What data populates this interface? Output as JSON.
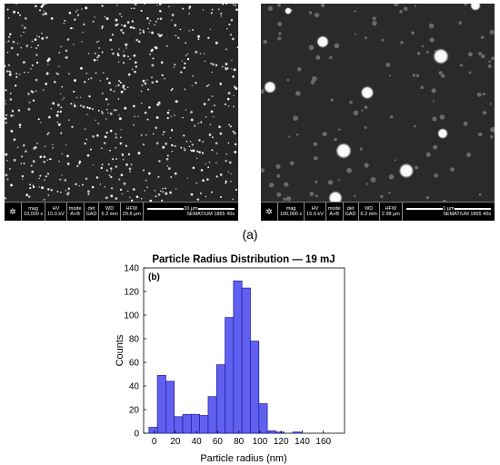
{
  "panel_a": {
    "caption": "(a)",
    "left": {
      "databar": {
        "mag_label": "mag",
        "mag_value": "10,000 x",
        "hv_label": "HV",
        "hv_value": "15.0 kV",
        "mode_label": "mode",
        "mode_value": "A+B",
        "det_label": "det",
        "det_value": "GAD",
        "wd_label": "WD",
        "wd_value": "6.3 mm",
        "hfw_label": "HFW",
        "hfw_value": "29.8 µm",
        "scale_label": "10 µm",
        "footer": "SEMAT/UM  1865 40s"
      }
    },
    "right": {
      "databar": {
        "mag_label": "mag",
        "mag_value": "100,000 x",
        "hv_label": "HV",
        "hv_value": "15.0 kV",
        "mode_label": "mode",
        "mode_value": "A+B",
        "det_label": "det",
        "det_value": "GAD",
        "wd_label": "WD",
        "wd_value": "6.2 mm",
        "hfw_label": "HFW",
        "hfw_value": "2.98 µm",
        "scale_label": "1 µm",
        "footer": "SEMAT/UM  1865 40s"
      }
    }
  },
  "chart_data": {
    "type": "bar",
    "title": "Particle Radius Distribution — 19 mJ",
    "panel_label": "(b)",
    "xlabel": "Particle radius (nm)",
    "ylabel": "Counts",
    "bin_width": 8,
    "bin_starts": [
      -5,
      3,
      11,
      19,
      27,
      35,
      43,
      51,
      59,
      67,
      75,
      83,
      91,
      99,
      107,
      115,
      123,
      131,
      139,
      147,
      155,
      163
    ],
    "values": [
      5,
      49,
      44,
      14,
      16,
      16,
      15,
      31,
      58,
      98,
      129,
      123,
      78,
      25,
      2,
      1,
      0,
      1,
      0,
      0,
      0,
      0
    ],
    "xlim": [
      -10,
      180
    ],
    "ylim": [
      0,
      140
    ],
    "xticks": [
      0,
      20,
      40,
      60,
      80,
      100,
      120,
      140,
      160
    ],
    "yticks": [
      0,
      20,
      40,
      60,
      80,
      100,
      120,
      140
    ],
    "bar_color": "#6060f0",
    "bar_edge": "#1a1a99",
    "grid": false
  }
}
